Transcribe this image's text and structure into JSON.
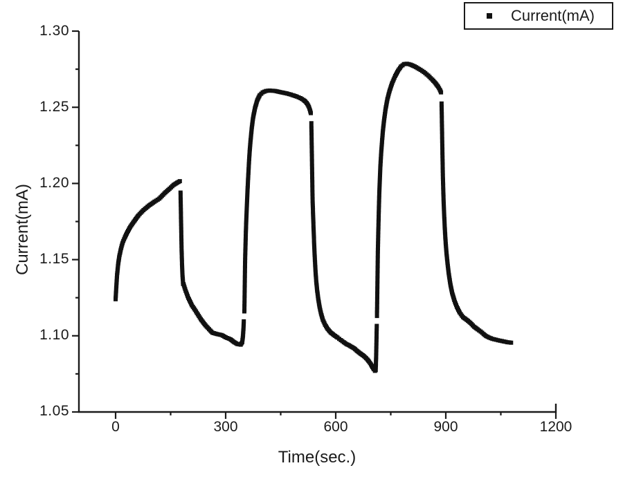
{
  "figure": {
    "background": "#ffffff",
    "axis_color": "#1a1a1a",
    "series_color": "#111111"
  },
  "legend": {
    "label": "Current(mA)",
    "marker": "filled-square",
    "marker_color": "#111111"
  },
  "axes": {
    "x": {
      "title": "Time(sec.)",
      "tick_labels": [
        "0",
        "300",
        "600",
        "900",
        "1200"
      ],
      "major_ticks": [
        0,
        300,
        600,
        900,
        1200
      ],
      "minor_ticks": [
        150,
        450,
        750,
        1050
      ]
    },
    "y": {
      "title": "Current(mA)",
      "tick_labels": [
        "1.05",
        "1.10",
        "1.15",
        "1.20",
        "1.25",
        "1.30"
      ],
      "major_ticks": [
        1.05,
        1.1,
        1.15,
        1.2,
        1.25,
        1.3
      ],
      "minor_ticks": [
        1.075,
        1.125,
        1.175,
        1.225,
        1.275
      ]
    }
  },
  "chart_data": {
    "type": "scatter",
    "title": "",
    "xlabel": "Time(sec.)",
    "ylabel": "Current(mA)",
    "xlim": [
      -100,
      1200
    ],
    "ylim": [
      1.05,
      1.3
    ],
    "grid": false,
    "legend_position": "top-right-outside",
    "marker_size_px": 6,
    "series": [
      {
        "name": "Current(mA)",
        "marker": "square",
        "color": "#111111",
        "segments": [
          [
            [
              0,
              1.124
            ],
            [
              2,
              1.1325
            ],
            [
              4,
              1.14
            ],
            [
              7,
              1.147
            ],
            [
              10,
              1.152
            ],
            [
              14,
              1.1565
            ],
            [
              19,
              1.161
            ],
            [
              25,
              1.1645
            ],
            [
              32,
              1.168
            ],
            [
              40,
              1.1715
            ],
            [
              50,
              1.175
            ],
            [
              62,
              1.179
            ],
            [
              76,
              1.1825
            ],
            [
              91,
              1.1855
            ],
            [
              106,
              1.188
            ],
            [
              119,
              1.19
            ],
            [
              133,
              1.1935
            ],
            [
              147,
              1.1965
            ],
            [
              158,
              1.199
            ],
            [
              168,
              1.2005
            ],
            [
              175,
              1.2015
            ]
          ],
          [
            [
              177,
              1.194
            ],
            [
              177.6,
              1.186
            ],
            [
              178.2,
              1.178
            ],
            [
              178.8,
              1.17
            ],
            [
              179.4,
              1.1625
            ],
            [
              180,
              1.1555
            ],
            [
              181,
              1.1475
            ],
            [
              182,
              1.141
            ],
            [
              184,
              1.134
            ],
            [
              185,
              1.134
            ],
            [
              191,
              1.1295
            ],
            [
              198,
              1.125
            ],
            [
              208,
              1.12
            ],
            [
              219,
              1.116
            ],
            [
              232,
              1.111
            ],
            [
              245,
              1.1068
            ],
            [
              258,
              1.1035
            ],
            [
              264,
              1.102
            ],
            [
              276,
              1.1012
            ],
            [
              289,
              1.1005
            ],
            [
              300,
              1.099
            ],
            [
              313,
              1.0977
            ],
            [
              322,
              1.096
            ],
            [
              332,
              1.0946
            ],
            [
              341,
              1.0942
            ],
            [
              345,
              1.0958
            ],
            [
              347,
              1.0995
            ],
            [
              348.5,
              1.1045
            ],
            [
              349.5,
              1.1095
            ]
          ],
          [
            [
              351,
              1.116
            ],
            [
              351.5,
              1.124
            ],
            [
              352,
              1.133
            ],
            [
              352.5,
              1.1415
            ],
            [
              353,
              1.15
            ],
            [
              354,
              1.159
            ],
            [
              355,
              1.1675
            ],
            [
              356,
              1.175
            ],
            [
              357.5,
              1.184
            ],
            [
              359,
              1.1925
            ],
            [
              361,
              1.2025
            ],
            [
              363,
              1.2115
            ],
            [
              365,
              1.2195
            ],
            [
              368,
              1.2285
            ],
            [
              371,
              1.236
            ],
            [
              375,
              1.2435
            ],
            [
              380,
              1.2495
            ],
            [
              386,
              1.2545
            ],
            [
              393,
              1.258
            ],
            [
              401,
              1.2598
            ],
            [
              410,
              1.2607
            ],
            [
              420,
              1.261
            ],
            [
              435,
              1.2607
            ],
            [
              452,
              1.2598
            ],
            [
              468,
              1.259
            ],
            [
              482,
              1.258
            ],
            [
              494,
              1.257
            ],
            [
              504,
              1.256
            ],
            [
              512,
              1.2548
            ],
            [
              518,
              1.2536
            ],
            [
              523,
              1.252
            ],
            [
              527,
              1.2502
            ],
            [
              530,
              1.248
            ],
            [
              532,
              1.2462
            ]
          ],
          [
            [
              533.5,
              1.2395
            ],
            [
              534,
              1.233
            ],
            [
              534.5,
              1.2255
            ],
            [
              535,
              1.218
            ],
            [
              535.5,
              1.2105
            ],
            [
              536,
              1.203
            ],
            [
              536.5,
              1.1955
            ],
            [
              537,
              1.1885
            ],
            [
              538,
              1.1815
            ],
            [
              539,
              1.1745
            ],
            [
              540,
              1.168
            ],
            [
              541,
              1.1615
            ],
            [
              542,
              1.1555
            ],
            [
              543.5,
              1.1485
            ],
            [
              545,
              1.142
            ],
            [
              547,
              1.1355
            ],
            [
              549.5,
              1.1295
            ],
            [
              552.5,
              1.124
            ],
            [
              556,
              1.119
            ],
            [
              560,
              1.1145
            ],
            [
              565,
              1.1105
            ],
            [
              571,
              1.1072
            ],
            [
              578,
              1.1045
            ],
            [
              586,
              1.1022
            ],
            [
              595,
              1.1005
            ],
            [
              605,
              1.0988
            ],
            [
              614,
              1.0972
            ],
            [
              622,
              1.0958
            ],
            [
              629,
              1.0946
            ],
            [
              636,
              1.0938
            ],
            [
              643,
              1.0928
            ],
            [
              650,
              1.0918
            ],
            [
              656,
              1.0905
            ],
            [
              662,
              1.0893
            ],
            [
              668,
              1.0882
            ],
            [
              674,
              1.0872
            ],
            [
              680,
              1.086
            ],
            [
              686,
              1.0845
            ],
            [
              691,
              1.083
            ],
            [
              696,
              1.0812
            ],
            [
              700,
              1.0795
            ],
            [
              704,
              1.078
            ],
            [
              707,
              1.077
            ],
            [
              709,
              1.0775
            ],
            [
              710,
              1.085
            ],
            [
              710.8,
              1.094
            ],
            [
              711.4,
              1.1015
            ],
            [
              711.8,
              1.1065
            ]
          ],
          [
            [
              712.4,
              1.113
            ],
            [
              712.9,
              1.121
            ],
            [
              713.4,
              1.13
            ],
            [
              713.9,
              1.139
            ],
            [
              714.4,
              1.148
            ],
            [
              715,
              1.1575
            ],
            [
              716,
              1.168
            ],
            [
              717,
              1.178
            ],
            [
              718,
              1.187
            ],
            [
              719,
              1.1955
            ],
            [
              720.5,
              1.2045
            ],
            [
              722,
              1.2125
            ],
            [
              724,
              1.2205
            ],
            [
              726.5,
              1.2285
            ],
            [
              729,
              1.2355
            ],
            [
              732,
              1.242
            ],
            [
              736,
              1.249
            ],
            [
              741,
              1.2555
            ],
            [
              747,
              1.261
            ],
            [
              754,
              1.266
            ],
            [
              762,
              1.2705
            ],
            [
              770,
              1.274
            ],
            [
              778,
              1.2768
            ],
            [
              786,
              1.2783
            ],
            [
              794,
              1.2786
            ],
            [
              804,
              1.278
            ],
            [
              815,
              1.2768
            ],
            [
              827,
              1.2752
            ],
            [
              840,
              1.2732
            ],
            [
              852,
              1.2708
            ],
            [
              863,
              1.2682
            ],
            [
              872,
              1.2658
            ],
            [
              879,
              1.2635
            ],
            [
              884,
              1.2615
            ],
            [
              887,
              1.2598
            ]
          ],
          [
            [
              888.5,
              1.2525
            ],
            [
              889,
              1.2455
            ],
            [
              889.5,
              1.2385
            ],
            [
              890,
              1.2315
            ],
            [
              890.5,
              1.2245
            ],
            [
              891,
              1.218
            ],
            [
              891.5,
              1.2115
            ],
            [
              892,
              1.2052
            ],
            [
              893,
              1.1965
            ],
            [
              894,
              1.189
            ],
            [
              895.5,
              1.18
            ],
            [
              897,
              1.172
            ],
            [
              899,
              1.1635
            ],
            [
              901.5,
              1.1555
            ],
            [
              904.5,
              1.148
            ],
            [
              908,
              1.141
            ],
            [
              912,
              1.1345
            ],
            [
              917,
              1.1285
            ],
            [
              923,
              1.1235
            ],
            [
              930,
              1.119
            ],
            [
              938,
              1.1152
            ],
            [
              947,
              1.1122
            ],
            [
              957,
              1.1105
            ],
            [
              967,
              1.1085
            ],
            [
              977,
              1.106
            ],
            [
              987,
              1.1042
            ],
            [
              995,
              1.1028
            ],
            [
              1003,
              1.1012
            ],
            [
              1010,
              1.0998
            ],
            [
              1018,
              1.0988
            ],
            [
              1027,
              1.098
            ],
            [
              1037,
              1.0974
            ],
            [
              1048,
              1.0968
            ],
            [
              1058,
              1.0963
            ],
            [
              1068,
              1.0958
            ],
            [
              1078,
              1.0955
            ]
          ]
        ]
      }
    ]
  }
}
